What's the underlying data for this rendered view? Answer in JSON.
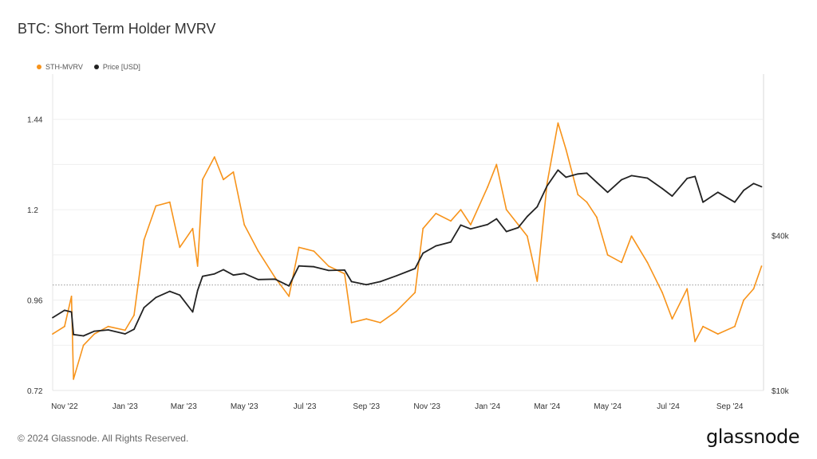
{
  "header": {
    "title": "BTC: Short Term Holder MVRV"
  },
  "footer": {
    "copyright": "© 2024 Glassnode. All Rights Reserved.",
    "brand": "glassnode"
  },
  "chart_data": {
    "type": "line",
    "title": "BTC: Short Term Holder MVRV",
    "legend_position": "top-left",
    "grid": true,
    "x_ticks": [
      "Nov '22",
      "Jan '23",
      "Mar '23",
      "May '23",
      "Jul '23",
      "Sep '23",
      "Nov '23",
      "Jan '24",
      "Mar '24",
      "May '24",
      "Jul '24",
      "Sep '24"
    ],
    "x_range": [
      "2022-10-20",
      "2024-10-05"
    ],
    "y_left": {
      "ticks": [
        "0.72",
        "0.96",
        "1.2",
        "1.44"
      ],
      "tick_values": [
        0.72,
        0.96,
        1.2,
        1.44
      ],
      "range": [
        0.72,
        1.56
      ]
    },
    "y_right": {
      "scale": "log",
      "ticks": [
        "$10k",
        "$40k"
      ],
      "tick_values": [
        10000,
        40000
      ],
      "range": [
        10000,
        170000
      ]
    },
    "reference_line": {
      "axis": "left",
      "value": 1.0,
      "style": "dotted"
    },
    "series": [
      {
        "name": "STH-MVRV",
        "color": "#f7931a",
        "axis": "left",
        "x": [
          "2022-10-20",
          "2022-11-01",
          "2022-11-08",
          "2022-11-10",
          "2022-11-20",
          "2022-12-01",
          "2022-12-15",
          "2023-01-01",
          "2023-01-10",
          "2023-01-20",
          "2023-02-01",
          "2023-02-15",
          "2023-02-25",
          "2023-03-10",
          "2023-03-15",
          "2023-03-20",
          "2023-04-01",
          "2023-04-10",
          "2023-04-20",
          "2023-05-01",
          "2023-05-15",
          "2023-06-01",
          "2023-06-15",
          "2023-06-25",
          "2023-07-10",
          "2023-07-25",
          "2023-08-10",
          "2023-08-17",
          "2023-09-01",
          "2023-09-15",
          "2023-10-01",
          "2023-10-20",
          "2023-10-28",
          "2023-11-10",
          "2023-11-25",
          "2023-12-05",
          "2023-12-15",
          "2024-01-01",
          "2024-01-10",
          "2024-01-20",
          "2024-02-01",
          "2024-02-10",
          "2024-02-20",
          "2024-03-01",
          "2024-03-12",
          "2024-03-20",
          "2024-04-01",
          "2024-04-10",
          "2024-04-20",
          "2024-05-01",
          "2024-05-15",
          "2024-05-25",
          "2024-06-10",
          "2024-06-25",
          "2024-07-05",
          "2024-07-20",
          "2024-07-28",
          "2024-08-05",
          "2024-08-20",
          "2024-09-06",
          "2024-09-15",
          "2024-09-25",
          "2024-10-03"
        ],
        "values": [
          0.87,
          0.89,
          0.97,
          0.75,
          0.84,
          0.87,
          0.89,
          0.88,
          0.92,
          1.12,
          1.21,
          1.22,
          1.1,
          1.15,
          1.05,
          1.28,
          1.34,
          1.28,
          1.3,
          1.16,
          1.09,
          1.02,
          0.97,
          1.1,
          1.09,
          1.05,
          1.03,
          0.9,
          0.91,
          0.9,
          0.93,
          0.98,
          1.15,
          1.19,
          1.17,
          1.2,
          1.16,
          1.26,
          1.32,
          1.2,
          1.16,
          1.13,
          1.01,
          1.27,
          1.43,
          1.36,
          1.24,
          1.22,
          1.18,
          1.08,
          1.06,
          1.13,
          1.06,
          0.98,
          0.91,
          0.99,
          0.85,
          0.89,
          0.87,
          0.89,
          0.96,
          0.99,
          1.05
        ]
      },
      {
        "name": "Price [USD]",
        "color": "#222222",
        "axis": "right",
        "x": [
          "2022-10-20",
          "2022-11-01",
          "2022-11-08",
          "2022-11-10",
          "2022-11-20",
          "2022-12-01",
          "2022-12-15",
          "2023-01-01",
          "2023-01-10",
          "2023-01-20",
          "2023-02-01",
          "2023-02-15",
          "2023-02-25",
          "2023-03-10",
          "2023-03-15",
          "2023-03-20",
          "2023-04-01",
          "2023-04-10",
          "2023-04-20",
          "2023-05-01",
          "2023-05-15",
          "2023-06-01",
          "2023-06-15",
          "2023-06-25",
          "2023-07-10",
          "2023-07-25",
          "2023-08-10",
          "2023-08-17",
          "2023-09-01",
          "2023-09-15",
          "2023-10-01",
          "2023-10-20",
          "2023-10-28",
          "2023-11-10",
          "2023-11-25",
          "2023-12-05",
          "2023-12-15",
          "2024-01-01",
          "2024-01-10",
          "2024-01-20",
          "2024-02-01",
          "2024-02-10",
          "2024-02-20",
          "2024-03-01",
          "2024-03-12",
          "2024-03-20",
          "2024-04-01",
          "2024-04-10",
          "2024-04-20",
          "2024-05-01",
          "2024-05-15",
          "2024-05-25",
          "2024-06-10",
          "2024-06-25",
          "2024-07-05",
          "2024-07-20",
          "2024-07-28",
          "2024-08-05",
          "2024-08-20",
          "2024-09-06",
          "2024-09-15",
          "2024-09-25",
          "2024-10-03"
        ],
        "values": [
          19200,
          20500,
          20200,
          16500,
          16300,
          17000,
          17200,
          16600,
          17300,
          21000,
          23000,
          24300,
          23500,
          20200,
          24500,
          27800,
          28400,
          29500,
          28100,
          28500,
          27000,
          27100,
          25500,
          30500,
          30300,
          29300,
          29400,
          26500,
          25800,
          26500,
          27900,
          29800,
          34200,
          36500,
          37800,
          44000,
          42500,
          44200,
          46500,
          41500,
          43000,
          47500,
          51800,
          62500,
          72000,
          67500,
          69500,
          70000,
          64500,
          59000,
          66000,
          68500,
          67000,
          61000,
          57000,
          66800,
          68000,
          54000,
          59000,
          54000,
          60000,
          63800,
          62000
        ]
      }
    ]
  }
}
